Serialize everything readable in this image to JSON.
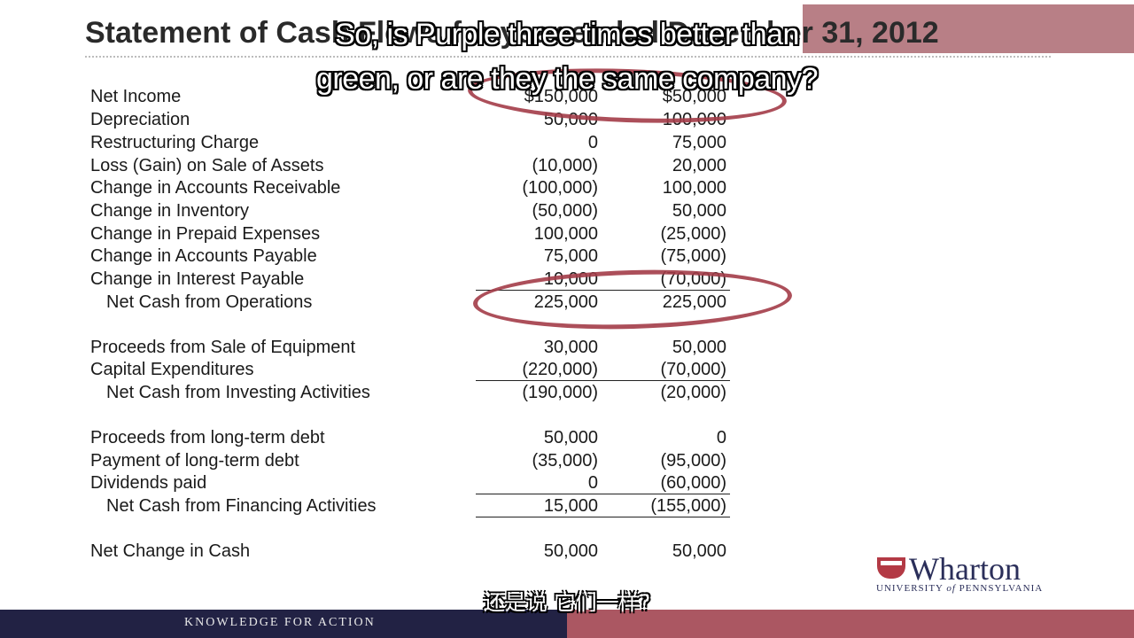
{
  "slide": {
    "title": "Statement of Cash Flows for year ended December 31, 2012"
  },
  "subtitles": {
    "line1": "So, is Purple three times better than",
    "line2": "green, or are they the same company?",
    "chinese": "还是说 它们一样?"
  },
  "rows": [
    {
      "label": "Net Income",
      "a": "$150,000",
      "b": "$50,000"
    },
    {
      "label": "Depreciation",
      "a": "50,000",
      "b": "100,000"
    },
    {
      "label": "Restructuring Charge",
      "a": "0",
      "b": "75,000"
    },
    {
      "label": "Loss (Gain) on Sale of Assets",
      "a": "(10,000)",
      "b": "20,000"
    },
    {
      "label": "Change in Accounts Receivable",
      "a": "(100,000)",
      "b": "100,000"
    },
    {
      "label": "Change in Inventory",
      "a": "(50,000)",
      "b": "50,000"
    },
    {
      "label": "Change in Prepaid Expenses",
      "a": "100,000",
      "b": "(25,000)"
    },
    {
      "label": "Change in Accounts Payable",
      "a": "75,000",
      "b": "(75,000)"
    },
    {
      "label": "Change in Interest Payable",
      "a": "10,000",
      "b": "(70,000)"
    },
    {
      "label": "Net Cash from Operations",
      "a": "225,000",
      "b": "225,000"
    },
    {
      "label": "Proceeds from Sale of Equipment",
      "a": "30,000",
      "b": "50,000"
    },
    {
      "label": "Capital Expenditures",
      "a": "(220,000)",
      "b": "(70,000)"
    },
    {
      "label": "Net Cash from Investing Activities",
      "a": "(190,000)",
      "b": "(20,000)"
    },
    {
      "label": "Proceeds from long-term debt",
      "a": "50,000",
      "b": "0"
    },
    {
      "label": "Payment of long-term debt",
      "a": "(35,000)",
      "b": "(95,000)"
    },
    {
      "label": "Dividends paid",
      "a": "0",
      "b": "(60,000)"
    },
    {
      "label": "Net Cash from Financing Activities",
      "a": "15,000",
      "b": "(155,000)"
    },
    {
      "label": "Net Change in Cash",
      "a": "50,000",
      "b": "50,000"
    }
  ],
  "footer": {
    "tagline": "KNOWLEDGE FOR ACTION"
  },
  "logo": {
    "name": "Wharton",
    "sub_prefix": "UNIVERSITY ",
    "sub_of": "of",
    "sub_suffix": " PENNSYLVANIA"
  },
  "colors": {
    "accent": "#a33c48",
    "footer_left": "#222244",
    "footer_right": "#ab5762"
  }
}
